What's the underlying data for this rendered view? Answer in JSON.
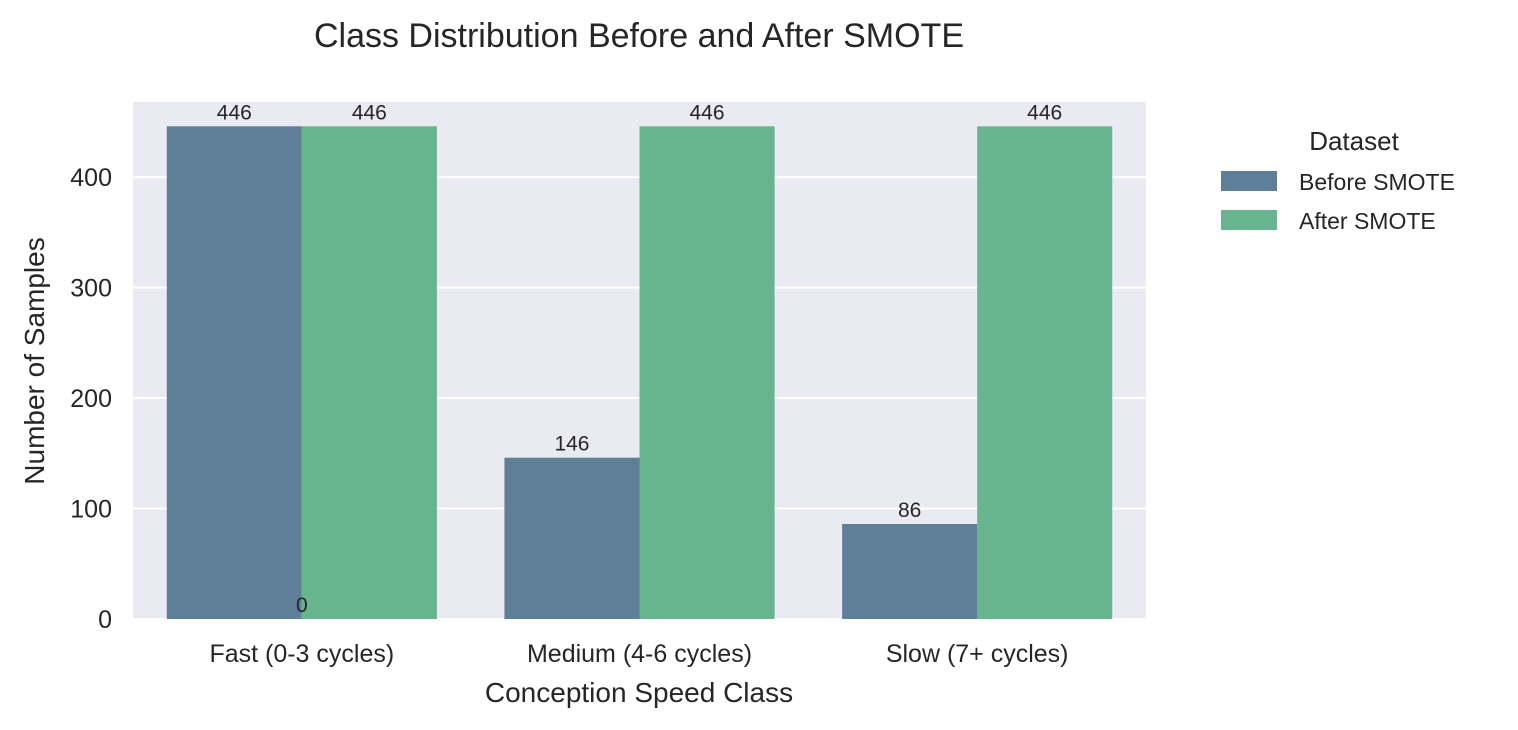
{
  "chart_data": {
    "type": "bar",
    "title": "Class Distribution Before and After SMOTE",
    "xlabel": "Conception Speed Class",
    "ylabel": "Number of Samples",
    "categories": [
      "Fast (0-3 cycles)",
      "Medium (4-6 cycles)",
      "Slow (7+ cycles)"
    ],
    "series": [
      {
        "name": "Before SMOTE",
        "values": [
          446,
          146,
          86
        ],
        "color": "#5f7f98"
      },
      {
        "name": "After SMOTE",
        "values": [
          446,
          446,
          446
        ],
        "color": "#67b48f"
      }
    ],
    "ylim": [
      0,
      468
    ],
    "yticks": [
      0,
      100,
      200,
      300,
      400
    ],
    "bar_labels": [
      {
        "text": "446",
        "series": 0,
        "category": 0
      },
      {
        "text": "446",
        "series": 1,
        "category": 0
      },
      {
        "text": "146",
        "series": 0,
        "category": 1
      },
      {
        "text": "446",
        "series": 1,
        "category": 1
      },
      {
        "text": "86",
        "series": 0,
        "category": 2
      },
      {
        "text": "446",
        "series": 1,
        "category": 2
      },
      {
        "text": "0",
        "anchor": "category-center",
        "category": 0,
        "value": 0
      }
    ],
    "legend": {
      "title": "Dataset",
      "position": "outside-right"
    },
    "grid": true,
    "background": "#eaeaf2",
    "gridcolor": "#ffffff"
  }
}
